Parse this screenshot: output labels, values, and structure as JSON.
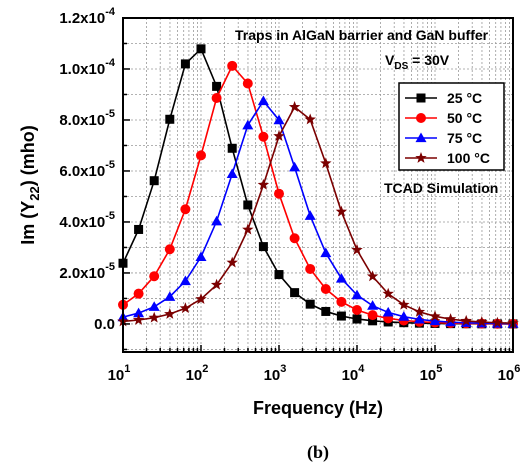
{
  "chart_data": {
    "type": "line",
    "x_scale": "log",
    "xlim": [
      10,
      1000000
    ],
    "ylim": [
      -1.1e-05,
      0.00012
    ],
    "xlabel": "Frequency (Hz)",
    "ylabel": {
      "prefix": "Im (Y",
      "sub": "22",
      "suffix": ") (mho)"
    },
    "x_ticks": [
      {
        "base": "10",
        "exp": "1",
        "value": 10
      },
      {
        "base": "10",
        "exp": "2",
        "value": 100
      },
      {
        "base": "10",
        "exp": "3",
        "value": 1000
      },
      {
        "base": "10",
        "exp": "4",
        "value": 10000
      },
      {
        "base": "10",
        "exp": "5",
        "value": 100000
      },
      {
        "base": "10",
        "exp": "6",
        "value": 1000000
      }
    ],
    "y_ticks": [
      {
        "mant": "0.0",
        "exp": "",
        "value": 0
      },
      {
        "mant": "2.0x10",
        "exp": "-5",
        "value": 2e-05
      },
      {
        "mant": "4.0x10",
        "exp": "-5",
        "value": 4e-05
      },
      {
        "mant": "6.0x10",
        "exp": "-5",
        "value": 6e-05
      },
      {
        "mant": "8.0x10",
        "exp": "-5",
        "value": 8e-05
      },
      {
        "mant": "1.0x10",
        "exp": "-4",
        "value": 0.0001
      },
      {
        "mant": "1.2x10",
        "exp": "-4",
        "value": 0.00012
      }
    ],
    "grid": true,
    "legend_position": "right",
    "annotations": {
      "line1": "Traps in AlGaN barrier and GaN buffer",
      "vds_v": "V",
      "vds_sub": "DS",
      "vds_rest": " = 30V",
      "tcad": "TCAD Simulation"
    },
    "caption": "(b)",
    "series": [
      {
        "name": "25 °C",
        "color": "#000000",
        "marker": "square",
        "fc": 90,
        "peak": 0.0001085
      },
      {
        "name": "50 °C",
        "color": "#ff0000",
        "marker": "circle",
        "fc": 270,
        "peak": 0.0001015
      },
      {
        "name": "75 °C",
        "color": "#0000ff",
        "marker": "triangle",
        "fc": 650,
        "peak": 8.75e-05
      },
      {
        "name": "100 °C",
        "color": "#7b0000",
        "marker": "star",
        "fc": 1750,
        "peak": 8.55e-05
      }
    ]
  }
}
